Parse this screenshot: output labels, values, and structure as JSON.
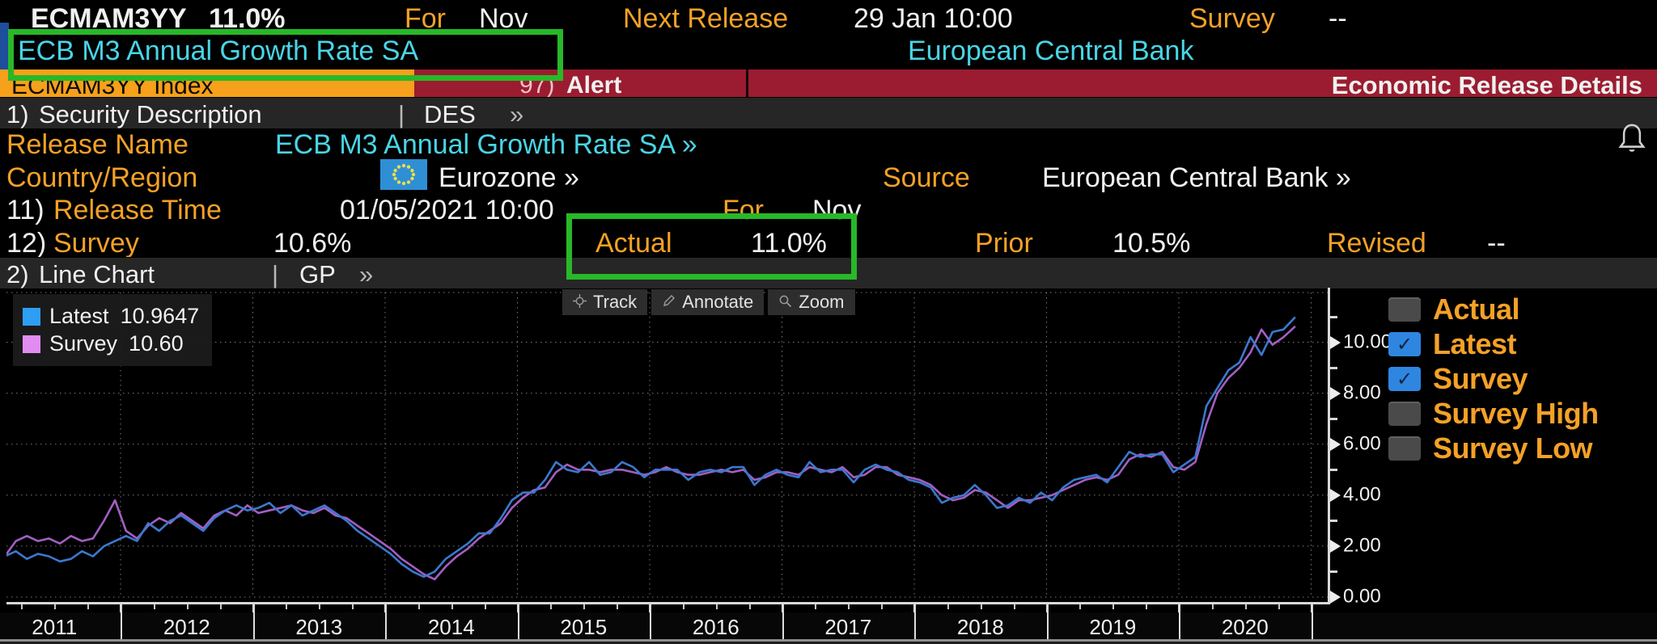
{
  "colors": {
    "orange": "#f5a127",
    "cyan": "#49d5e6",
    "orange_bar": "#f6a01b",
    "red_bar": "#9b1c30",
    "green_highlight": "#28b828",
    "blue_accent": "#1d4f9c",
    "section_bar_bg": "#262626",
    "grid": "#8f8f8f",
    "axis": "#d9d9d9",
    "checkbox_on": "#2f86e0",
    "checkbox_off": "#4a4a4a"
  },
  "topbar": {
    "ticker": "ECMAM3YY",
    "value": "11.0%",
    "for_label": "For",
    "for_value": "Nov",
    "next_release_label": "Next Release",
    "next_release_value": "29 Jan 10:00",
    "survey_label": "Survey",
    "survey_value": "--",
    "security_name": "ECB M3 Annual Growth Rate SA",
    "source_name": "European Central Bank"
  },
  "tabbar": {
    "ticker_tab": "ECMAM3YY Index",
    "alert_num": "97)",
    "alert_label": "Alert",
    "title": "Economic Release Details"
  },
  "section1": {
    "num": "1)",
    "label": "Security Description",
    "divider": "|",
    "mnemonic": "DES",
    "chevrons": "»"
  },
  "details": {
    "release_name_label": "Release Name",
    "release_name_value": "ECB M3 Annual Growth Rate SA »",
    "country_label": "Country/Region",
    "country_value": "Eurozone »",
    "source_label": "Source",
    "source_value": "European Central Bank »",
    "release_time_num": "11)",
    "release_time_label": "Release Time",
    "release_time_value": "01/05/2021 10:00",
    "release_for_label": "For",
    "release_for_value": "Nov",
    "survey_num": "12)",
    "survey_label": "Survey",
    "survey_value": "10.6%",
    "actual_label": "Actual",
    "actual_value": "11.0%",
    "prior_label": "Prior",
    "prior_value": "10.5%",
    "revised_label": "Revised",
    "revised_value": "--"
  },
  "section2": {
    "num": "2)",
    "label": "Line Chart",
    "divider": "|",
    "mnemonic": "GP",
    "chevrons": "»"
  },
  "chart": {
    "legend": [
      {
        "name": "Latest",
        "value": "10.9647",
        "color": "#2e9ef2"
      },
      {
        "name": "Survey",
        "value": "10.60",
        "color": "#e18cf2"
      }
    ],
    "toolbar": [
      {
        "icon": "track-icon",
        "label": "Track"
      },
      {
        "icon": "annotate-icon",
        "label": "Annotate"
      },
      {
        "icon": "zoom-icon",
        "label": "Zoom"
      }
    ],
    "checkboxes": [
      {
        "label": "Actual",
        "checked": false
      },
      {
        "label": "Latest",
        "checked": true
      },
      {
        "label": "Survey",
        "checked": true
      },
      {
        "label": "Survey High",
        "checked": false
      },
      {
        "label": "Survey Low",
        "checked": false
      }
    ]
  },
  "chart_data": {
    "type": "line",
    "title": "ECB M3 Annual Growth Rate SA",
    "x_start": "2011-01",
    "x_freq": "monthly",
    "x_tick_labels": [
      "2011",
      "2012",
      "2013",
      "2014",
      "2015",
      "2016",
      "2017",
      "2018",
      "2019",
      "2020"
    ],
    "y_ticks": [
      0,
      2,
      4,
      6,
      8,
      10
    ],
    "y_tick_labels": [
      "0.00",
      "2.00",
      "4.00",
      "6.00",
      "8.00",
      "10.00"
    ],
    "ylim": [
      -0.55,
      11.9
    ],
    "grid": true,
    "legend_position": "top-left",
    "series": [
      {
        "name": "Latest",
        "color": "#3b78cf",
        "values": [
          1.9,
          1.6,
          1.8,
          1.5,
          1.7,
          1.6,
          1.4,
          1.5,
          1.8,
          1.6,
          2.0,
          2.2,
          2.4,
          2.2,
          2.9,
          2.6,
          3.0,
          3.2,
          2.9,
          2.6,
          3.1,
          3.4,
          3.6,
          3.4,
          3.5,
          3.7,
          3.3,
          3.6,
          3.2,
          3.4,
          3.6,
          3.3,
          3.0,
          2.6,
          2.3,
          2.0,
          1.7,
          1.3,
          1.0,
          0.8,
          1.0,
          1.5,
          1.8,
          2.1,
          2.5,
          2.5,
          3.1,
          3.8,
          4.1,
          4.1,
          4.6,
          5.3,
          5.0,
          4.9,
          5.3,
          4.8,
          4.9,
          5.3,
          5.1,
          4.7,
          5.0,
          5.0,
          5.0,
          4.6,
          4.9,
          5.0,
          4.9,
          5.1,
          5.1,
          4.4,
          4.8,
          5.0,
          4.8,
          4.7,
          5.3,
          4.9,
          5.0,
          5.0,
          4.5,
          5.0,
          5.2,
          5.0,
          4.9,
          4.6,
          4.5,
          4.3,
          3.7,
          3.9,
          4.0,
          4.4,
          4.0,
          3.5,
          3.6,
          3.9,
          3.7,
          4.1,
          3.8,
          4.3,
          4.6,
          4.7,
          4.8,
          4.5,
          5.1,
          5.7,
          5.5,
          5.6,
          5.6,
          4.9,
          5.2,
          5.5,
          7.5,
          8.2,
          8.9,
          9.2,
          10.2,
          9.5,
          10.4,
          10.5,
          10.96
        ]
      },
      {
        "name": "Survey",
        "color": "#a25fc2",
        "values": [
          2.1,
          1.6,
          2.2,
          2.4,
          2.2,
          2.3,
          2.1,
          2.4,
          2.2,
          2.3,
          3.0,
          3.8,
          2.6,
          2.3,
          2.8,
          3.1,
          2.9,
          3.3,
          3.0,
          2.7,
          3.2,
          3.4,
          3.2,
          3.6,
          3.3,
          3.4,
          3.5,
          3.6,
          3.4,
          3.3,
          3.5,
          3.2,
          3.1,
          2.8,
          2.5,
          2.2,
          1.9,
          1.5,
          1.2,
          0.9,
          0.7,
          1.2,
          1.6,
          1.9,
          2.3,
          2.6,
          2.9,
          3.5,
          3.9,
          4.2,
          4.3,
          4.9,
          5.2,
          5.0,
          5.0,
          4.9,
          5.0,
          5.0,
          4.9,
          4.8,
          4.9,
          5.1,
          4.9,
          4.8,
          4.8,
          4.9,
          5.0,
          4.9,
          5.0,
          4.6,
          4.7,
          4.9,
          4.9,
          4.8,
          5.1,
          5.0,
          4.9,
          5.1,
          4.7,
          4.8,
          5.1,
          5.1,
          4.8,
          4.7,
          4.6,
          4.4,
          4.0,
          3.8,
          3.9,
          4.2,
          4.1,
          3.8,
          3.5,
          3.8,
          3.8,
          3.9,
          4.0,
          4.2,
          4.4,
          4.6,
          4.7,
          4.6,
          4.8,
          5.4,
          5.6,
          5.5,
          5.7,
          5.1,
          5.0,
          5.3,
          6.8,
          8.0,
          8.6,
          9.0,
          9.6,
          10.5,
          9.9,
          10.2,
          10.6
        ]
      }
    ]
  }
}
